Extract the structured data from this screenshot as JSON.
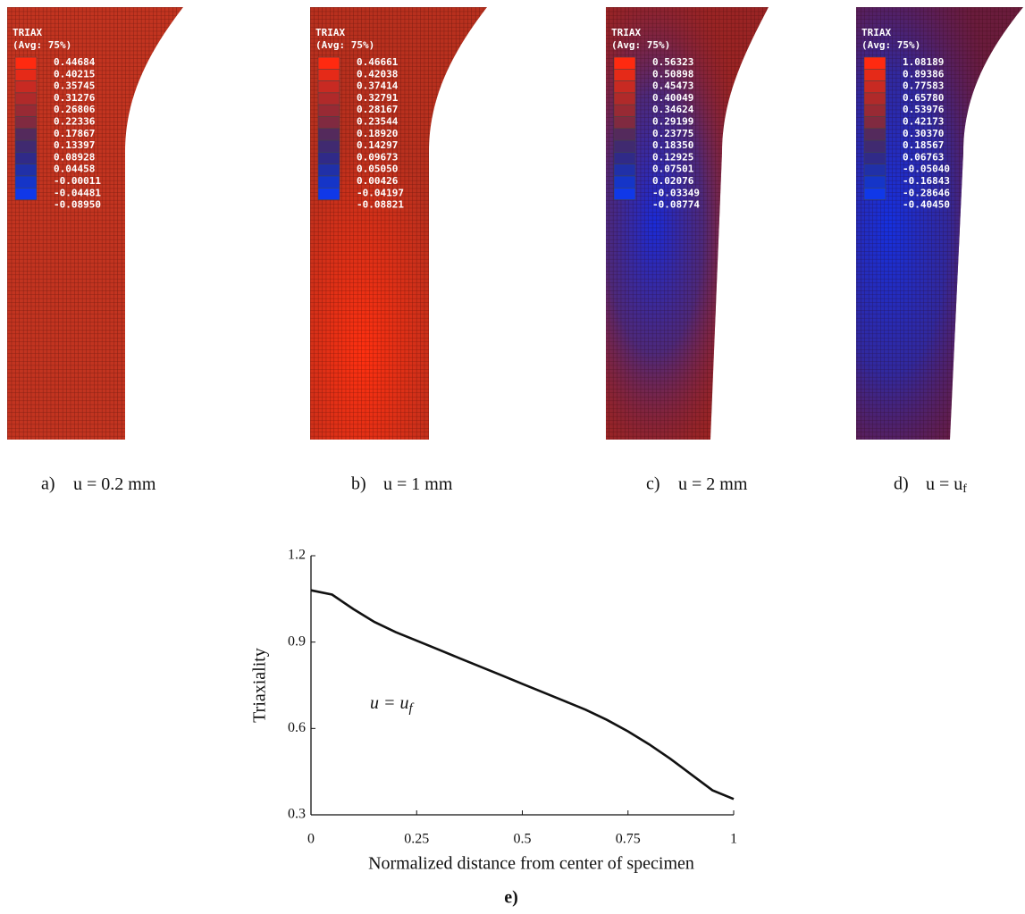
{
  "panels": [
    {
      "legend": {
        "title": "TRIAX",
        "subtitle": "(Avg: 75%)",
        "values": [
          "0.44684",
          "0.40215",
          "0.35745",
          "0.31276",
          "0.26806",
          "0.22336",
          "0.17867",
          "0.13397",
          "0.08928",
          "0.04458",
          "-0.00011",
          "-0.04481",
          "-0.08950"
        ]
      },
      "caption": {
        "label": "a)",
        "text": "u = 0.2 mm"
      }
    },
    {
      "legend": {
        "title": "TRIAX",
        "subtitle": "(Avg: 75%)",
        "values": [
          "0.46661",
          "0.42038",
          "0.37414",
          "0.32791",
          "0.28167",
          "0.23544",
          "0.18920",
          "0.14297",
          "0.09673",
          "0.05050",
          "0.00426",
          "-0.04197",
          "-0.08821"
        ]
      },
      "caption": {
        "label": "b)",
        "text": "u = 1 mm"
      }
    },
    {
      "legend": {
        "title": "TRIAX",
        "subtitle": "(Avg: 75%)",
        "values": [
          "0.56323",
          "0.50898",
          "0.45473",
          "0.40049",
          "0.34624",
          "0.29199",
          "0.23775",
          "0.18350",
          "0.12925",
          "0.07501",
          "0.02076",
          "-0.03349",
          "-0.08774"
        ]
      },
      "caption": {
        "label": "c)",
        "text": "u = 2 mm"
      }
    },
    {
      "legend": {
        "title": "TRIAX",
        "subtitle": "(Avg: 75%)",
        "values": [
          "1.08189",
          "0.89386",
          "0.77583",
          "0.65780",
          "0.53976",
          "0.42173",
          "0.30370",
          "0.18567",
          "0.06763",
          "-0.05040",
          "-0.16843",
          "-0.28646",
          "-0.40450"
        ]
      },
      "caption": {
        "label": "d)",
        "text": "u = u",
        "subscript": "f"
      }
    }
  ],
  "chart_data": {
    "type": "line",
    "caption": "e)",
    "xlabel": "Normalized distance from center of specimen",
    "ylabel": "Triaxiality",
    "annotation": {
      "text": "u = u",
      "subscript": "f"
    },
    "x": [
      0,
      0.05,
      0.1,
      0.15,
      0.2,
      0.25,
      0.3,
      0.35,
      0.4,
      0.45,
      0.5,
      0.55,
      0.6,
      0.65,
      0.7,
      0.75,
      0.8,
      0.85,
      0.9,
      0.95,
      1
    ],
    "series": [
      {
        "color": "#111111",
        "values": [
          1.08,
          1.065,
          1.015,
          0.97,
          0.935,
          0.905,
          0.875,
          0.845,
          0.815,
          0.785,
          0.755,
          0.725,
          0.695,
          0.665,
          0.63,
          0.59,
          0.545,
          0.495,
          0.44,
          0.385,
          0.355
        ]
      }
    ],
    "xlim": [
      0,
      1
    ],
    "ylim": [
      0.3,
      1.2
    ],
    "xticks": [
      0,
      0.25,
      0.5,
      0.75,
      1
    ],
    "yticks": [
      0.3,
      0.6,
      0.9,
      1.2
    ]
  }
}
